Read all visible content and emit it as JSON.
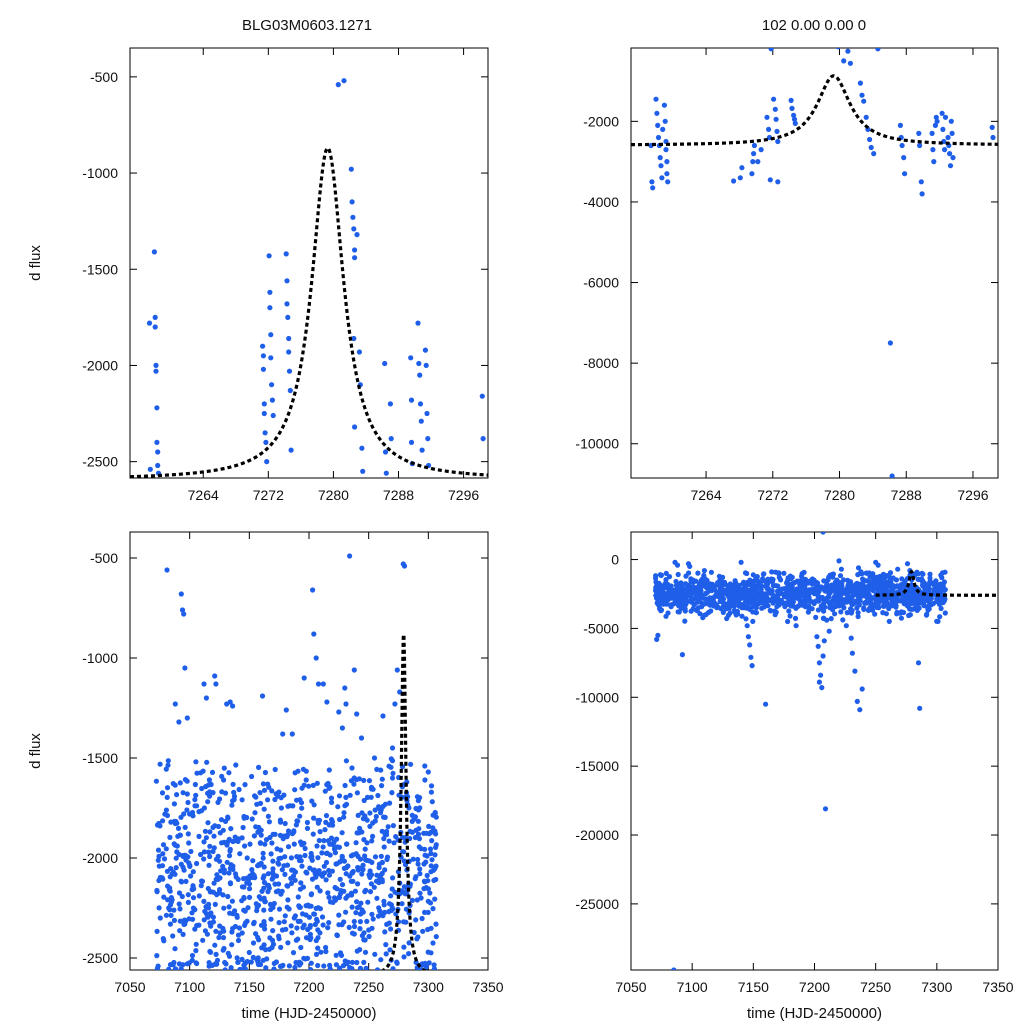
{
  "figure": {
    "title_left": "BLG03M0603.1271",
    "title_right": "102  0.00  0.00  0"
  },
  "colors": {
    "points": "#1f5ee8",
    "model": "#000000",
    "frame": "#000000"
  },
  "chart_data": [
    {
      "id": "top-left",
      "type": "scatter",
      "title": "BLG03M0603.1271",
      "xlabel": "",
      "ylabel": "d flux",
      "xlim": [
        7255,
        7299
      ],
      "ylim": [
        -2585,
        -350
      ],
      "xticks": [
        7264,
        7272,
        7280,
        7288,
        7296
      ],
      "yticks": [
        -500,
        -1000,
        -1500,
        -2000,
        -2500
      ],
      "model": {
        "t0": 7279.3,
        "peak": -870,
        "base": -2595,
        "width": 2.4
      },
      "points": [
        [
          7257.4,
          -1780
        ],
        [
          7257.5,
          -2540
        ],
        [
          7258.0,
          -1410
        ],
        [
          7258.1,
          -1750
        ],
        [
          7258.1,
          -1800
        ],
        [
          7258.2,
          -2000
        ],
        [
          7258.2,
          -2030
        ],
        [
          7258.3,
          -2220
        ],
        [
          7258.3,
          -2400
        ],
        [
          7258.4,
          -2450
        ],
        [
          7258.4,
          -2520
        ],
        [
          7258.5,
          -2560
        ],
        [
          7271.3,
          -1900
        ],
        [
          7271.4,
          -1950
        ],
        [
          7271.4,
          -2020
        ],
        [
          7271.5,
          -2200
        ],
        [
          7271.5,
          -2250
        ],
        [
          7271.6,
          -2350
        ],
        [
          7271.7,
          -2400
        ],
        [
          7271.8,
          -2500
        ],
        [
          7272.1,
          -1430
        ],
        [
          7272.2,
          -1620
        ],
        [
          7272.2,
          -1700
        ],
        [
          7272.3,
          -1840
        ],
        [
          7272.3,
          -1960
        ],
        [
          7272.4,
          -2100
        ],
        [
          7272.5,
          -2180
        ],
        [
          7272.6,
          -2260
        ],
        [
          7274.2,
          -1420
        ],
        [
          7274.3,
          -1560
        ],
        [
          7274.3,
          -1680
        ],
        [
          7274.4,
          -1750
        ],
        [
          7274.5,
          -1860
        ],
        [
          7274.5,
          -1930
        ],
        [
          7274.6,
          -2030
        ],
        [
          7274.7,
          -2130
        ],
        [
          7274.8,
          -2440
        ],
        [
          7280.6,
          -540
        ],
        [
          7281.3,
          -520
        ],
        [
          7282.2,
          -980
        ],
        [
          7282.3,
          -1150
        ],
        [
          7282.4,
          -1230
        ],
        [
          7282.5,
          -1290
        ],
        [
          7282.6,
          -1400
        ],
        [
          7282.6,
          -1440
        ],
        [
          7282.9,
          -1320
        ],
        [
          7282.5,
          -1860
        ],
        [
          7282.6,
          -2320
        ],
        [
          7283.2,
          -1930
        ],
        [
          7283.3,
          -2100
        ],
        [
          7283.5,
          -2430
        ],
        [
          7283.6,
          -2550
        ],
        [
          7286.3,
          -1990
        ],
        [
          7286.4,
          -2450
        ],
        [
          7286.5,
          -2560
        ],
        [
          7287.0,
          -2200
        ],
        [
          7287.1,
          -2380
        ],
        [
          7289.5,
          -1960
        ],
        [
          7289.6,
          -2180
        ],
        [
          7289.6,
          -2400
        ],
        [
          7289.7,
          -2510
        ],
        [
          7290.4,
          -1780
        ],
        [
          7290.5,
          -1990
        ],
        [
          7290.6,
          -2050
        ],
        [
          7290.7,
          -2200
        ],
        [
          7290.8,
          -2290
        ],
        [
          7290.9,
          -2440
        ],
        [
          7291.3,
          -1920
        ],
        [
          7291.4,
          -2000
        ],
        [
          7291.5,
          -2250
        ],
        [
          7291.6,
          -2380
        ],
        [
          7291.7,
          -2520
        ],
        [
          7298.3,
          -2160
        ],
        [
          7298.4,
          -2380
        ]
      ]
    },
    {
      "id": "top-right",
      "type": "scatter",
      "title": "102  0.00  0.00  0",
      "xlabel": "",
      "ylabel": "",
      "xlim": [
        7255,
        7299
      ],
      "ylim": [
        -10850,
        -180
      ],
      "xticks": [
        7264,
        7272,
        7280,
        7288,
        7296
      ],
      "yticks": [
        -2000,
        -4000,
        -6000,
        -8000,
        -10000
      ],
      "model": {
        "t0": 7279.3,
        "peak": -870,
        "base": -2595,
        "width": 2.4
      },
      "points": [
        [
          7257.4,
          -2600
        ],
        [
          7257.5,
          -3500
        ],
        [
          7257.6,
          -3650
        ],
        [
          7258.0,
          -1450
        ],
        [
          7258.1,
          -1800
        ],
        [
          7258.2,
          -2100
        ],
        [
          7258.3,
          -2400
        ],
        [
          7258.4,
          -2600
        ],
        [
          7258.5,
          -2900
        ],
        [
          7258.6,
          -3100
        ],
        [
          7258.7,
          -3400
        ],
        [
          7258.8,
          -2200
        ],
        [
          7259.0,
          -1600
        ],
        [
          7259.1,
          -2000
        ],
        [
          7259.2,
          -2500
        ],
        [
          7259.2,
          -2700
        ],
        [
          7259.3,
          -3000
        ],
        [
          7259.3,
          -3300
        ],
        [
          7259.4,
          -3500
        ],
        [
          7267.3,
          -3480
        ],
        [
          7268.1,
          -3400
        ],
        [
          7268.3,
          -3150
        ],
        [
          7269.5,
          -3300
        ],
        [
          7269.6,
          -3000
        ],
        [
          7269.7,
          -2800
        ],
        [
          7269.8,
          -2600
        ],
        [
          7270.2,
          -3000
        ],
        [
          7270.6,
          -2700
        ],
        [
          7271.3,
          -1900
        ],
        [
          7271.5,
          -2200
        ],
        [
          7271.6,
          -2400
        ],
        [
          7271.7,
          -3450
        ],
        [
          7272.1,
          -1450
        ],
        [
          7272.3,
          -1700
        ],
        [
          7272.4,
          -1950
        ],
        [
          7272.5,
          -2250
        ],
        [
          7272.6,
          -2500
        ],
        [
          7272.6,
          -3500
        ],
        [
          7274.2,
          -1480
        ],
        [
          7274.3,
          -1680
        ],
        [
          7274.5,
          -1850
        ],
        [
          7274.6,
          -1950
        ],
        [
          7274.7,
          -2050
        ],
        [
          7271.8,
          -200
        ],
        [
          7279.8,
          -150
        ],
        [
          7281.0,
          -260
        ],
        [
          7280.5,
          -500
        ],
        [
          7281.3,
          -560
        ],
        [
          7284.6,
          -200
        ],
        [
          7282.5,
          -1050
        ],
        [
          7282.7,
          -1350
        ],
        [
          7282.9,
          -1500
        ],
        [
          7283.2,
          -1900
        ],
        [
          7283.4,
          -2200
        ],
        [
          7283.6,
          -2450
        ],
        [
          7283.8,
          -2650
        ],
        [
          7284.1,
          -2800
        ],
        [
          7286.1,
          -7500
        ],
        [
          7286.3,
          -10800
        ],
        [
          7287.3,
          -2100
        ],
        [
          7287.4,
          -2400
        ],
        [
          7287.5,
          -2600
        ],
        [
          7287.7,
          -2900
        ],
        [
          7287.8,
          -3300
        ],
        [
          7289.5,
          -2300
        ],
        [
          7289.6,
          -2600
        ],
        [
          7289.8,
          -3500
        ],
        [
          7289.9,
          -3800
        ],
        [
          7291.1,
          -2300
        ],
        [
          7291.2,
          -2700
        ],
        [
          7291.3,
          -3000
        ],
        [
          7291.5,
          -2100
        ],
        [
          7291.6,
          -1900
        ],
        [
          7291.7,
          -2000
        ],
        [
          7292.3,
          -1800
        ],
        [
          7292.4,
          -2200
        ],
        [
          7292.5,
          -2500
        ],
        [
          7292.6,
          -2700
        ],
        [
          7292.7,
          -1900
        ],
        [
          7293.0,
          -2400
        ],
        [
          7293.1,
          -2600
        ],
        [
          7293.2,
          -2800
        ],
        [
          7293.3,
          -3100
        ],
        [
          7293.4,
          -2000
        ],
        [
          7293.5,
          -2300
        ],
        [
          7293.6,
          -2900
        ],
        [
          7298.3,
          -2150
        ],
        [
          7298.4,
          -2400
        ]
      ]
    },
    {
      "id": "bottom-left",
      "type": "scatter",
      "title": "",
      "xlabel": "time (HJD-2450000)",
      "ylabel": "d flux",
      "xlim": [
        7050,
        7350
      ],
      "ylim": [
        -2560,
        -370
      ],
      "xticks": [
        7050,
        7100,
        7150,
        7200,
        7250,
        7300,
        7350
      ],
      "yticks": [
        -500,
        -1000,
        -1500,
        -2000,
        -2500
      ],
      "model": {
        "t0": 7279.3,
        "peak": -870,
        "base": -2595,
        "width": 2.4
      },
      "generator": {
        "seed": 11,
        "count": 1150,
        "xmin": 7072,
        "xmax": 7307,
        "mean": -2080,
        "sd": 300,
        "lo": -2560,
        "hi": -1500
      },
      "points": [
        [
          7081,
          -560
        ],
        [
          7093,
          -680
        ],
        [
          7094,
          -760
        ],
        [
          7095,
          -780
        ],
        [
          7096,
          -1050
        ],
        [
          7088,
          -1230
        ],
        [
          7091,
          -1320
        ],
        [
          7098,
          -1300
        ],
        [
          7112,
          -1130
        ],
        [
          7114,
          -1200
        ],
        [
          7121,
          -1090
        ],
        [
          7122,
          -1130
        ],
        [
          7131,
          -1230
        ],
        [
          7134,
          -1220
        ],
        [
          7136,
          -1240
        ],
        [
          7161,
          -1190
        ],
        [
          7178,
          -1380
        ],
        [
          7181,
          -1260
        ],
        [
          7186,
          -1380
        ],
        [
          7196,
          -1100
        ],
        [
          7203,
          -660
        ],
        [
          7204,
          -880
        ],
        [
          7206,
          -1000
        ],
        [
          7208,
          -1130
        ],
        [
          7215,
          -1220
        ],
        [
          7212,
          -1130
        ],
        [
          7225,
          -1270
        ],
        [
          7228,
          -1350
        ],
        [
          7234,
          -490
        ],
        [
          7230,
          -1150
        ],
        [
          7231,
          -1230
        ],
        [
          7238,
          -1060
        ],
        [
          7240,
          -1280
        ],
        [
          7244,
          -1400
        ],
        [
          7262,
          -1290
        ],
        [
          7270,
          -1450
        ],
        [
          7279,
          -530
        ],
        [
          7280,
          -540
        ],
        [
          7274,
          -1060
        ],
        [
          7272,
          -1230
        ],
        [
          7276,
          -1170
        ],
        [
          7236,
          -1550
        ],
        [
          7238,
          -1600
        ],
        [
          7270,
          -1600
        ],
        [
          7297,
          -1540
        ],
        [
          7300,
          -1570
        ]
      ]
    },
    {
      "id": "bottom-right",
      "type": "scatter",
      "title": "",
      "xlabel": "time (HJD-2450000)",
      "ylabel": "",
      "xlim": [
        7050,
        7350
      ],
      "ylim": [
        -29800,
        2000
      ],
      "xticks": [
        7050,
        7100,
        7150,
        7200,
        7250,
        7300,
        7350
      ],
      "yticks": [
        0,
        -5000,
        -10000,
        -15000,
        -20000,
        -25000
      ],
      "model": {
        "t0": 7279.3,
        "peak": -870,
        "base": -2595,
        "width": 2.4,
        "xmin": 7250
      },
      "generator": {
        "seed": 23,
        "count": 1350,
        "xmin": 7070,
        "xmax": 7307,
        "mean": -2500,
        "sd": 700,
        "lo": -4500,
        "hi": -900
      },
      "points": [
        [
          7072,
          -5500
        ],
        [
          7071,
          -5800
        ],
        [
          7092,
          -6900
        ],
        [
          7095,
          -1200
        ],
        [
          7097,
          -300
        ],
        [
          7098,
          -500
        ],
        [
          7086,
          -200
        ],
        [
          7088,
          -400
        ],
        [
          7110,
          -800
        ],
        [
          7140,
          -200
        ],
        [
          7145,
          -4800
        ],
        [
          7146,
          -5600
        ],
        [
          7147,
          -6200
        ],
        [
          7148,
          -7100
        ],
        [
          7149,
          -7700
        ],
        [
          7144,
          -4300
        ],
        [
          7160,
          -10500
        ],
        [
          7165,
          -900
        ],
        [
          7175,
          -1000
        ],
        [
          7178,
          -4500
        ],
        [
          7180,
          -4100
        ],
        [
          7185,
          -4800
        ],
        [
          7199,
          -1700
        ],
        [
          7201,
          -4200
        ],
        [
          7202,
          -5600
        ],
        [
          7203,
          -6300
        ],
        [
          7204,
          -7500
        ],
        [
          7205,
          -8400
        ],
        [
          7206,
          -9300
        ],
        [
          7204,
          -8900
        ],
        [
          7207,
          -7000
        ],
        [
          7208,
          -5900
        ],
        [
          7207,
          2000
        ],
        [
          7209,
          -18100
        ],
        [
          7210,
          -4400
        ],
        [
          7212,
          -5200
        ],
        [
          7220,
          -100
        ],
        [
          7222,
          -700
        ],
        [
          7224,
          -3500
        ],
        [
          7226,
          -4800
        ],
        [
          7230,
          -5700
        ],
        [
          7231,
          -6800
        ],
        [
          7233,
          -8100
        ],
        [
          7235,
          -10300
        ],
        [
          7237,
          -10900
        ],
        [
          7239,
          -9400
        ],
        [
          7236,
          -600
        ],
        [
          7238,
          -900
        ],
        [
          7250,
          -200
        ],
        [
          7252,
          -400
        ],
        [
          7268,
          -700
        ],
        [
          7276,
          -300
        ],
        [
          7278,
          -800
        ],
        [
          7285,
          -7500
        ],
        [
          7286,
          -10800
        ],
        [
          7300,
          -2300
        ],
        [
          7085,
          -29800
        ],
        [
          7072,
          -2000
        ],
        [
          7300,
          -1800
        ]
      ]
    }
  ]
}
